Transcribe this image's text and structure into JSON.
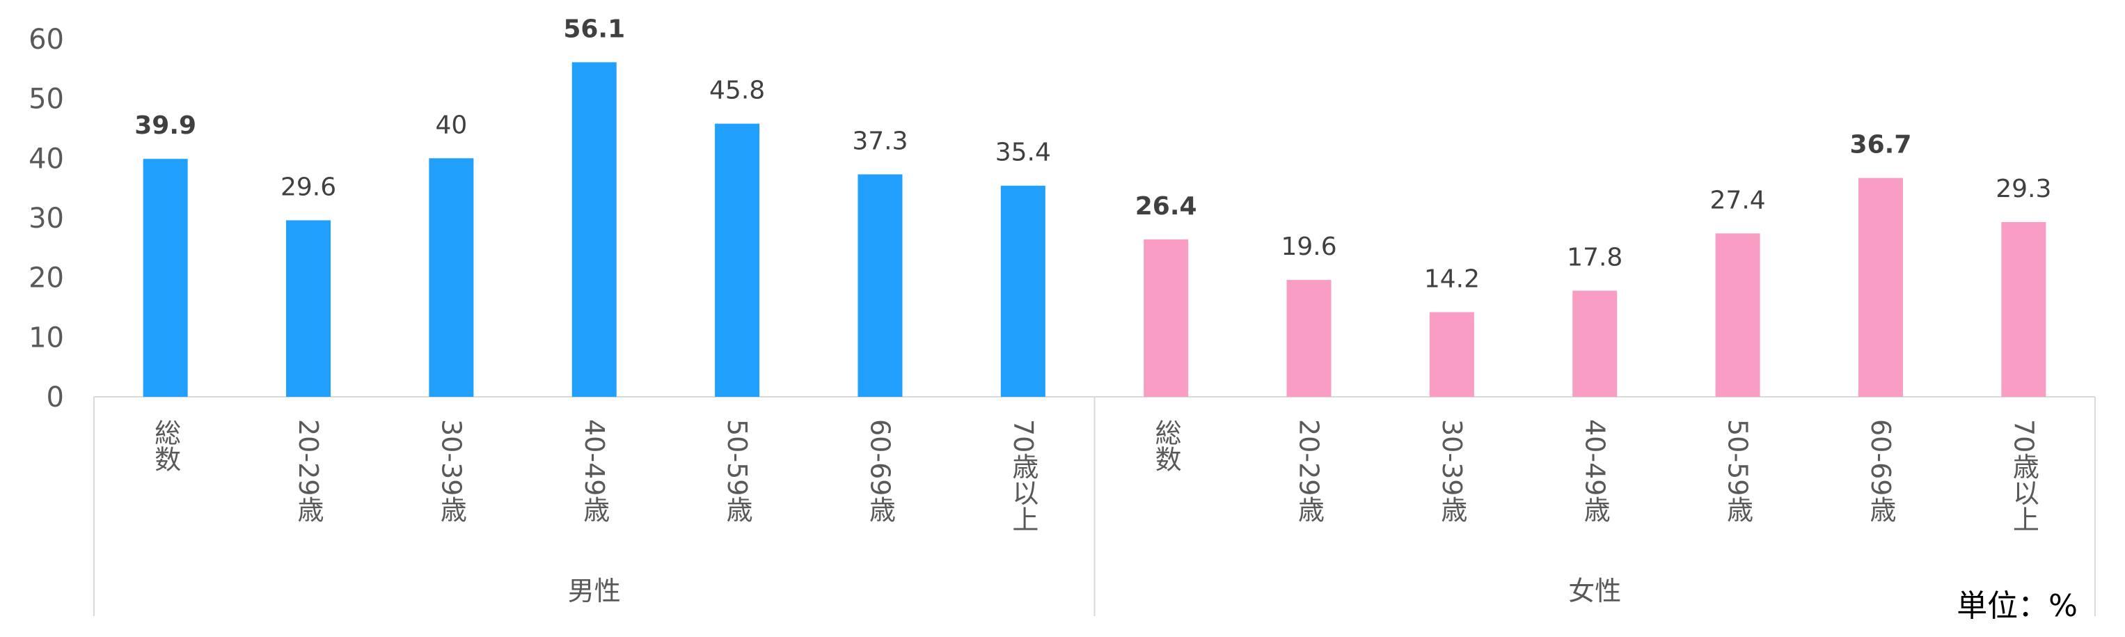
{
  "chart_data": {
    "type": "bar",
    "title": "",
    "ylim": [
      0,
      60
    ],
    "yticks": [
      "0",
      "10",
      "20",
      "30",
      "40",
      "50",
      "60"
    ],
    "grid": false,
    "unit_note": "単位：%",
    "groups": [
      {
        "name": "男性",
        "color": "#219ffd",
        "categories": [
          "総数",
          "20-29歳",
          "30-39歳",
          "40-49歳",
          "50-59歳",
          "60-69歳",
          "70歳以上"
        ],
        "values": [
          39.9,
          29.6,
          40,
          56.1,
          45.8,
          37.3,
          35.4
        ],
        "labels": [
          "39.9",
          "29.6",
          "40",
          "56.1",
          "45.8",
          "37.3",
          "35.4"
        ],
        "bold_labels": [
          true,
          false,
          false,
          true,
          false,
          false,
          false
        ]
      },
      {
        "name": "女性",
        "color": "#f99dc4",
        "categories": [
          "総数",
          "20-29歳",
          "30-39歳",
          "40-49歳",
          "50-59歳",
          "60-69歳",
          "70歳以上"
        ],
        "values": [
          26.4,
          19.6,
          14.2,
          17.8,
          27.4,
          36.7,
          29.3
        ],
        "labels": [
          "26.4",
          "19.6",
          "14.2",
          "17.8",
          "27.4",
          "36.7",
          "29.3"
        ],
        "bold_labels": [
          true,
          false,
          false,
          false,
          false,
          true,
          false
        ]
      }
    ]
  }
}
